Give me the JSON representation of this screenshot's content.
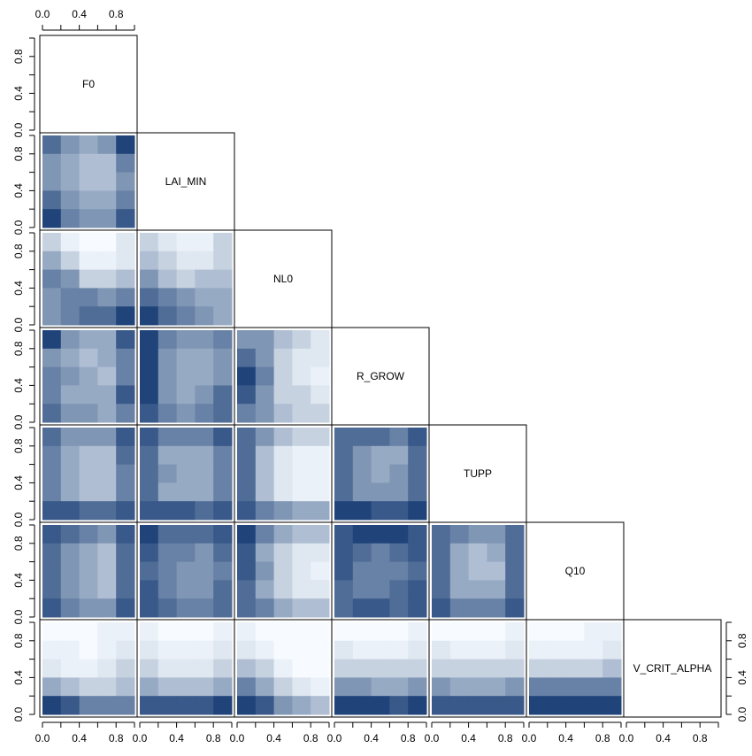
{
  "chart_data": {
    "type": "pairs-density",
    "variables": [
      "F0",
      "LAI_MIN",
      "NL0",
      "R_GROW",
      "TUPP",
      "Q10",
      "V_CRIT_ALPHA"
    ],
    "xlim": [
      0,
      1
    ],
    "ylim": [
      0,
      1
    ],
    "ticks": [
      {
        "value": 0,
        "label": "0.0"
      },
      {
        "value": 0.4,
        "label": "0.4"
      },
      {
        "value": 0.8,
        "label": "0.8"
      }
    ],
    "minor_ticks": [
      0.2,
      0.6,
      1
    ],
    "colors": [
      "#f7fbff",
      "#08306b"
    ],
    "pairs": [
      [
        [
          [
            0.7,
            0.5,
            0.4,
            0.5,
            0.9
          ],
          [
            0.5,
            0.4,
            0.3,
            0.3,
            0.6
          ],
          [
            0.5,
            0.4,
            0.3,
            0.3,
            0.5
          ],
          [
            0.7,
            0.5,
            0.4,
            0.4,
            0.6
          ],
          [
            0.9,
            0.6,
            0.5,
            0.5,
            0.8
          ]
        ]
      ],
      [
        [
          [
            0.2,
            0.05,
            0,
            0,
            0.1
          ],
          [
            0.4,
            0.2,
            0.05,
            0.05,
            0.1
          ],
          [
            0.6,
            0.5,
            0.2,
            0.2,
            0.3
          ],
          [
            0.5,
            0.6,
            0.6,
            0.5,
            0.6
          ],
          [
            0.5,
            0.6,
            0.7,
            0.7,
            0.9
          ]
        ],
        [
          [
            0.2,
            0.1,
            0.05,
            0.05,
            0.2
          ],
          [
            0.3,
            0.2,
            0.1,
            0.1,
            0.2
          ],
          [
            0.5,
            0.3,
            0.2,
            0.3,
            0.3
          ],
          [
            0.7,
            0.6,
            0.5,
            0.4,
            0.4
          ],
          [
            0.9,
            0.7,
            0.6,
            0.5,
            0.4
          ]
        ]
      ],
      [
        [
          [
            0.9,
            0.5,
            0.4,
            0.4,
            0.8
          ],
          [
            0.5,
            0.4,
            0.3,
            0.4,
            0.6
          ],
          [
            0.6,
            0.5,
            0.4,
            0.3,
            0.6
          ],
          [
            0.6,
            0.4,
            0.4,
            0.4,
            0.8
          ],
          [
            0.7,
            0.5,
            0.5,
            0.4,
            0.6
          ]
        ],
        [
          [
            0.9,
            0.6,
            0.5,
            0.5,
            0.6
          ],
          [
            0.9,
            0.5,
            0.4,
            0.4,
            0.5
          ],
          [
            0.9,
            0.5,
            0.4,
            0.4,
            0.5
          ],
          [
            0.9,
            0.5,
            0.4,
            0.5,
            0.7
          ],
          [
            0.8,
            0.6,
            0.5,
            0.6,
            0.7
          ]
        ],
        [
          [
            0.5,
            0.5,
            0.3,
            0.2,
            0.1
          ],
          [
            0.7,
            0.5,
            0.2,
            0.1,
            0.1
          ],
          [
            0.9,
            0.6,
            0.2,
            0.1,
            0.05
          ],
          [
            0.8,
            0.5,
            0.2,
            0.2,
            0.1
          ],
          [
            0.6,
            0.5,
            0.3,
            0.2,
            0.2
          ]
        ]
      ],
      [
        [
          [
            0.7,
            0.5,
            0.5,
            0.5,
            0.8
          ],
          [
            0.6,
            0.4,
            0.3,
            0.3,
            0.7
          ],
          [
            0.6,
            0.4,
            0.3,
            0.3,
            0.6
          ],
          [
            0.6,
            0.4,
            0.3,
            0.3,
            0.6
          ],
          [
            0.8,
            0.8,
            0.7,
            0.7,
            0.8
          ]
        ],
        [
          [
            0.8,
            0.6,
            0.6,
            0.6,
            0.8
          ],
          [
            0.7,
            0.4,
            0.4,
            0.4,
            0.6
          ],
          [
            0.7,
            0.5,
            0.4,
            0.4,
            0.6
          ],
          [
            0.7,
            0.4,
            0.4,
            0.4,
            0.6
          ],
          [
            0.8,
            0.8,
            0.8,
            0.7,
            0.8
          ]
        ],
        [
          [
            0.7,
            0.5,
            0.3,
            0.2,
            0.2
          ],
          [
            0.7,
            0.3,
            0.1,
            0.05,
            0.05
          ],
          [
            0.7,
            0.3,
            0.1,
            0.05,
            0.05
          ],
          [
            0.7,
            0.3,
            0.1,
            0.05,
            0.05
          ],
          [
            0.8,
            0.6,
            0.5,
            0.4,
            0.4
          ]
        ],
        [
          [
            0.7,
            0.7,
            0.7,
            0.6,
            0.8
          ],
          [
            0.7,
            0.5,
            0.4,
            0.4,
            0.7
          ],
          [
            0.7,
            0.5,
            0.4,
            0.5,
            0.7
          ],
          [
            0.7,
            0.5,
            0.5,
            0.5,
            0.7
          ],
          [
            0.9,
            0.9,
            0.8,
            0.8,
            0.9
          ]
        ]
      ],
      [
        [
          [
            0.8,
            0.7,
            0.6,
            0.5,
            0.8
          ],
          [
            0.7,
            0.5,
            0.4,
            0.3,
            0.7
          ],
          [
            0.7,
            0.5,
            0.4,
            0.3,
            0.7
          ],
          [
            0.7,
            0.5,
            0.4,
            0.3,
            0.7
          ],
          [
            0.8,
            0.6,
            0.5,
            0.5,
            0.8
          ]
        ],
        [
          [
            0.9,
            0.7,
            0.7,
            0.7,
            0.8
          ],
          [
            0.8,
            0.6,
            0.6,
            0.5,
            0.7
          ],
          [
            0.7,
            0.6,
            0.5,
            0.5,
            0.6
          ],
          [
            0.8,
            0.6,
            0.5,
            0.5,
            0.7
          ],
          [
            0.8,
            0.7,
            0.6,
            0.6,
            0.7
          ]
        ],
        [
          [
            0.9,
            0.6,
            0.4,
            0.3,
            0.3
          ],
          [
            0.8,
            0.4,
            0.2,
            0.1,
            0.1
          ],
          [
            0.8,
            0.5,
            0.2,
            0.1,
            0.05
          ],
          [
            0.7,
            0.4,
            0.2,
            0.1,
            0.1
          ],
          [
            0.7,
            0.6,
            0.4,
            0.3,
            0.3
          ]
        ],
        [
          [
            0.8,
            0.9,
            0.9,
            0.9,
            0.8
          ],
          [
            0.8,
            0.7,
            0.6,
            0.7,
            0.8
          ],
          [
            0.8,
            0.6,
            0.6,
            0.6,
            0.7
          ],
          [
            0.7,
            0.6,
            0.6,
            0.7,
            0.8
          ],
          [
            0.7,
            0.8,
            0.8,
            0.7,
            0.8
          ]
        ],
        [
          [
            0.7,
            0.6,
            0.5,
            0.5,
            0.7
          ],
          [
            0.7,
            0.4,
            0.3,
            0.4,
            0.7
          ],
          [
            0.7,
            0.4,
            0.3,
            0.3,
            0.7
          ],
          [
            0.7,
            0.4,
            0.4,
            0.4,
            0.7
          ],
          [
            0.8,
            0.6,
            0.6,
            0.6,
            0.8
          ]
        ]
      ],
      [
        [
          [
            0,
            0,
            0,
            0.05,
            0.05
          ],
          [
            0.05,
            0.05,
            0,
            0.05,
            0.1
          ],
          [
            0.1,
            0.05,
            0.05,
            0.1,
            0.2
          ],
          [
            0.4,
            0.3,
            0.2,
            0.2,
            0.3
          ],
          [
            0.9,
            0.8,
            0.6,
            0.6,
            0.6
          ]
        ],
        [
          [
            0.05,
            0,
            0,
            0,
            0.05
          ],
          [
            0.1,
            0.05,
            0.05,
            0.05,
            0.1
          ],
          [
            0.2,
            0.1,
            0.1,
            0.1,
            0.2
          ],
          [
            0.4,
            0.3,
            0.3,
            0.3,
            0.4
          ],
          [
            0.8,
            0.8,
            0.8,
            0.8,
            0.9
          ]
        ],
        [
          [
            0.05,
            0,
            0,
            0,
            0
          ],
          [
            0.1,
            0.05,
            0,
            0,
            0
          ],
          [
            0.3,
            0.2,
            0.05,
            0,
            0
          ],
          [
            0.6,
            0.4,
            0.2,
            0.1,
            0.05
          ],
          [
            0.9,
            0.8,
            0.5,
            0.4,
            0.3
          ]
        ],
        [
          [
            0,
            0,
            0,
            0,
            0.05
          ],
          [
            0.1,
            0.05,
            0.05,
            0.05,
            0.1
          ],
          [
            0.2,
            0.2,
            0.2,
            0.2,
            0.2
          ],
          [
            0.5,
            0.5,
            0.4,
            0.4,
            0.5
          ],
          [
            0.9,
            0.9,
            0.9,
            0.8,
            0.9
          ]
        ],
        [
          [
            0,
            0,
            0,
            0,
            0.05
          ],
          [
            0.1,
            0.05,
            0.05,
            0.05,
            0.1
          ],
          [
            0.2,
            0.2,
            0.2,
            0.2,
            0.2
          ],
          [
            0.5,
            0.4,
            0.4,
            0.4,
            0.5
          ],
          [
            0.8,
            0.8,
            0.8,
            0.8,
            0.8
          ]
        ],
        [
          [
            0,
            0,
            0,
            0.05,
            0.05
          ],
          [
            0.05,
            0.05,
            0.05,
            0.05,
            0.1
          ],
          [
            0.2,
            0.2,
            0.2,
            0.2,
            0.3
          ],
          [
            0.6,
            0.6,
            0.6,
            0.6,
            0.6
          ],
          [
            0.9,
            0.9,
            0.9,
            0.9,
            0.9
          ]
        ]
      ]
    ]
  }
}
